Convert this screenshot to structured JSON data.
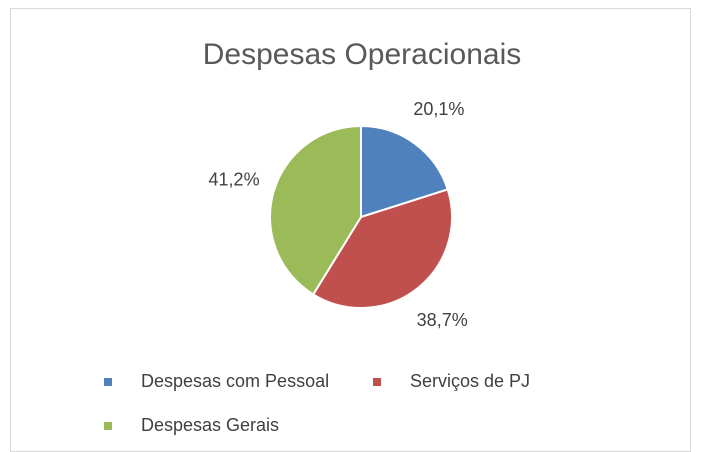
{
  "chart_data": {
    "type": "pie",
    "title": "Despesas Operacionais",
    "categories": [
      "Despesas com Pessoal",
      "Serviços de PJ",
      "Despesas Gerais"
    ],
    "values": [
      20.1,
      38.7,
      41.2
    ],
    "value_labels": [
      "20,1%",
      "38,7%",
      "41,2%"
    ],
    "colors": [
      "#4f81bd",
      "#c0504d",
      "#9bbb59"
    ],
    "legend": "bottom"
  }
}
